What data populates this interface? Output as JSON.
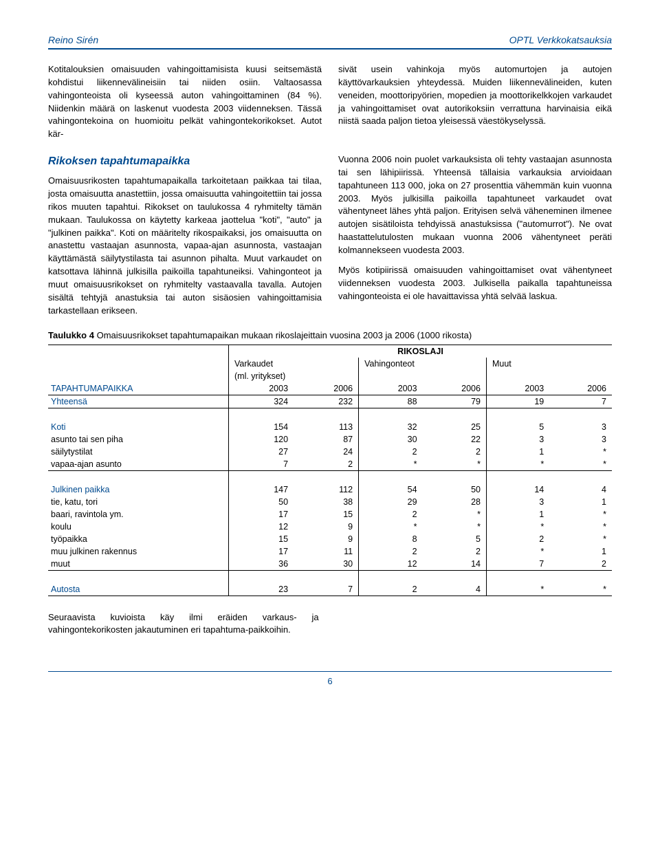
{
  "header": {
    "left": "Reino Sirén",
    "right": "OPTL Verkkokatsauksia"
  },
  "intro": {
    "left": "Kotitalouksien omaisuuden vahingoittamisista kuusi seitsemästä kohdistui liikennevälineisiin tai niiden osiin. Valtaosassa vahingonteoista oli kyseessä auton vahingoittaminen (84 %). Niidenkin määrä on laskenut vuodesta 2003 viidenneksen. Tässä vahingontekoina on huomioitu pelkät vahingontekorikokset. Autot kär-",
    "right": "sivät usein vahinkoja myös automurtojen ja autojen käyttövarkauksien yhteydessä. Muiden liikennevälineiden, kuten veneiden, moottoripyörien, mopedien ja moottorikelkkojen varkaudet ja vahingoittamiset ovat autorikoksiin verrattuna harvinaisia eikä niistä saada paljon tietoa yleisessä väestökyselyssä."
  },
  "section2": {
    "heading": "Rikoksen tapahtumapaikka",
    "left": "Omaisuusrikosten tapahtumapaikalla tarkoitetaan paikkaa tai tilaa, josta omaisuutta anastettiin, jossa omaisuutta vahingoitettiin tai jossa rikos muuten tapahtui. Rikokset on taulukossa 4 ryhmitelty tämän mukaan. Taulukossa on käytetty karkeaa jaottelua \"koti\", \"auto\" ja \"julkinen paikka\". Koti on määritelty rikospaikaksi, jos omaisuutta on anastettu vastaajan asunnosta, vapaa-ajan asunnosta, vastaajan käyttämästä säilytystilasta tai asunnon pihalta. Muut varkaudet on katsottava lähinnä julkisilla paikoilla tapahtuneiksi. Vahingonteot ja muut omaisuusrikokset on ryhmitelty vastaavalla tavalla. Autojen sisältä tehtyjä anastuksia tai auton sisäosien vahingoittamisia tarkastellaan erikseen.",
    "right1": "Vuonna 2006 noin puolet varkauksista oli tehty vastaajan asunnosta tai sen lähipiirissä. Yhteensä tällaisia varkauksia arvioidaan tapahtuneen 113 000, joka on 27 prosenttia vähemmän kuin vuonna 2003. Myös julkisilla paikoilla tapahtuneet varkaudet ovat vähentyneet lähes yhtä paljon. Erityisen selvä väheneminen ilmenee autojen sisätiloista tehdyissä anastuksissa (\"automurrot\"). Ne ovat haastattelutulosten mukaan vuonna 2006 vähentyneet peräti kolmannekseen vuodesta 2003.",
    "right2": "Myös kotipiirissä omaisuuden vahingoittamiset ovat vähentyneet viidenneksen vuodesta 2003. Julkisella paikalla tapahtuneissa vahingonteoista ei ole havaittavissa yhtä selvää laskua."
  },
  "table": {
    "caption_label": "Taulukko 4",
    "caption_text": "Omaisuusrikokset tapahtumapaikan mukaan rikoslajeittain vuosina 2003 ja 2006 (1000 rikosta)",
    "supertitle": "RIKOSLAJI",
    "col_groups": [
      "Varkaudet",
      "Vahingonteot",
      "Muut"
    ],
    "col_sub": "(ml. yritykset)",
    "row_header_label": "TAPAHTUMAPAIKKA",
    "years": [
      "2003",
      "2006",
      "2003",
      "2006",
      "2003",
      "2006"
    ],
    "total_label": "Yhteensä",
    "total_values": [
      "324",
      "232",
      "88",
      "79",
      "19",
      "7"
    ],
    "groups": [
      {
        "label": "Koti",
        "head_values": [
          "154",
          "113",
          "32",
          "25",
          "5",
          "3"
        ],
        "rows": [
          {
            "label": "asunto tai sen piha",
            "values": [
              "120",
              "87",
              "30",
              "22",
              "3",
              "3"
            ]
          },
          {
            "label": "säilytystilat",
            "values": [
              "27",
              "24",
              "2",
              "2",
              "1",
              "*"
            ]
          },
          {
            "label": "vapaa-ajan asunto",
            "values": [
              "7",
              "2",
              "*",
              "*",
              "*",
              "*"
            ]
          }
        ]
      },
      {
        "label": "Julkinen paikka",
        "head_values": [
          "147",
          "112",
          "54",
          "50",
          "14",
          "4"
        ],
        "rows": [
          {
            "label": "tie, katu, tori",
            "values": [
              "50",
              "38",
              "29",
              "28",
              "3",
              "1"
            ]
          },
          {
            "label": "baari, ravintola ym.",
            "values": [
              "17",
              "15",
              "2",
              "*",
              "1",
              "*"
            ]
          },
          {
            "label": "koulu",
            "values": [
              "12",
              "9",
              "*",
              "*",
              "*",
              "*"
            ]
          },
          {
            "label": "työpaikka",
            "values": [
              "15",
              "9",
              "8",
              "5",
              "2",
              "*"
            ]
          },
          {
            "label": "muu julkinen rakennus",
            "values": [
              "17",
              "11",
              "2",
              "2",
              "*",
              "1"
            ]
          },
          {
            "label": "muut",
            "values": [
              "36",
              "30",
              "12",
              "14",
              "7",
              "2"
            ]
          }
        ]
      },
      {
        "label": "Autosta",
        "head_values": [
          "23",
          "7",
          "2",
          "4",
          "*",
          "*"
        ],
        "rows": []
      }
    ]
  },
  "footer_text": "Seuraavista kuvioista käy ilmi eräiden varkaus- ja vahingontekorikosten jakautuminen eri tapahtuma-paikkoihin.",
  "page_number": "6"
}
